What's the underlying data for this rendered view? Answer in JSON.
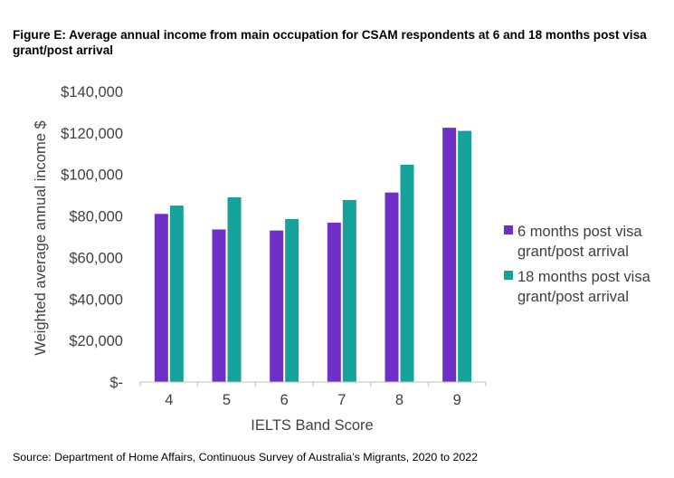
{
  "figure": {
    "title": "Figure E: Average annual income from main occupation for CSAM respondents at 6 and 18 months post visa grant/post arrival",
    "source": "Source: Department of Home Affairs, Continuous Survey of Australia’s Migrants, 2020 to 2022"
  },
  "chart_data": {
    "type": "bar",
    "title": "",
    "xlabel": "IELTS Band Score",
    "ylabel": "Weighted average annual income $",
    "categories": [
      "4",
      "5",
      "6",
      "7",
      "8",
      "9"
    ],
    "series": [
      {
        "name": "6 months post visa grant/post arrival",
        "legend_lines": [
          "6 months post visa",
          "grant/post arrival"
        ],
        "color": "#7030c8",
        "values": [
          81000,
          73500,
          73000,
          76800,
          91300,
          122500
        ]
      },
      {
        "name": "18 months post visa grant/post arrival",
        "legend_lines": [
          "18 months post visa",
          "grant/post arrival"
        ],
        "color": "#16a29b",
        "values": [
          85000,
          89000,
          78500,
          87700,
          104700,
          121000
        ]
      }
    ],
    "ylim": [
      0,
      140000
    ],
    "yticks": [
      0,
      20000,
      40000,
      60000,
      80000,
      100000,
      120000,
      140000
    ],
    "ytick_labels": [
      "$-",
      "$20,000",
      "$40,000",
      "$60,000",
      "$80,000",
      "$100,000",
      "$120,000",
      "$140,000"
    ],
    "grid": false,
    "legend_position": "right"
  }
}
